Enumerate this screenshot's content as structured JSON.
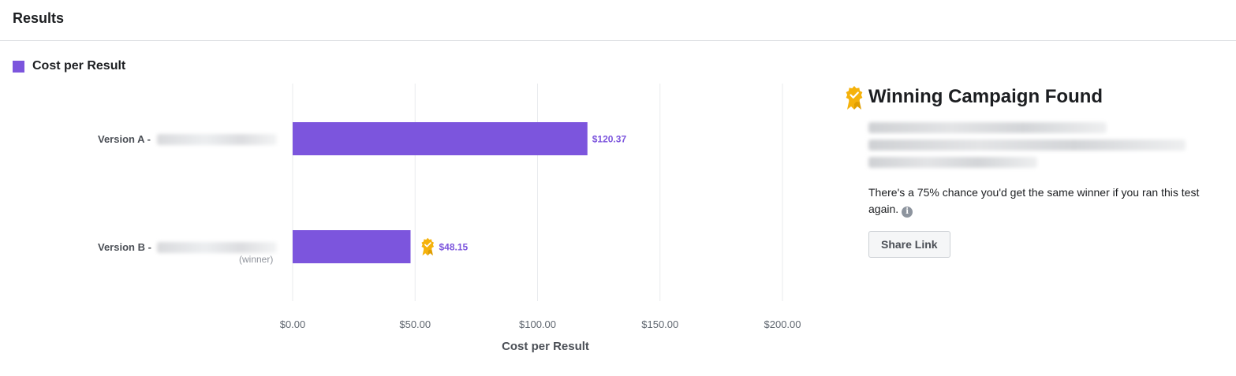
{
  "header": {
    "title": "Results"
  },
  "legend": {
    "label": "Cost per Result",
    "color": "#7c55dd"
  },
  "chart_data": {
    "type": "bar",
    "orientation": "horizontal",
    "categories": [
      "Version A -",
      "Version B -"
    ],
    "category_notes": [
      "",
      "(winner)"
    ],
    "values": [
      120.37,
      48.15
    ],
    "value_labels": [
      "$120.37",
      "$48.15"
    ],
    "winner_index": 1,
    "series": [
      {
        "name": "Cost per Result",
        "values": [
          120.37,
          48.15
        ]
      }
    ],
    "xlabel": "Cost per Result",
    "ylabel": "",
    "xlim": [
      0,
      200
    ],
    "ticks": [
      0,
      50,
      100,
      150,
      200
    ],
    "tick_labels": [
      "$0.00",
      "$50.00",
      "$100.00",
      "$150.00",
      "$200.00"
    ],
    "grid": true,
    "bar_color": "#7c55dd",
    "value_label_color": "#7c55dd",
    "legend_position": "top-left"
  },
  "panel": {
    "title": "Winning Campaign Found",
    "chance_text": "There's a 75% chance you'd get the same winner if you ran this test again.",
    "share_button_label": "Share Link",
    "badge_color": "#f5b20b"
  }
}
